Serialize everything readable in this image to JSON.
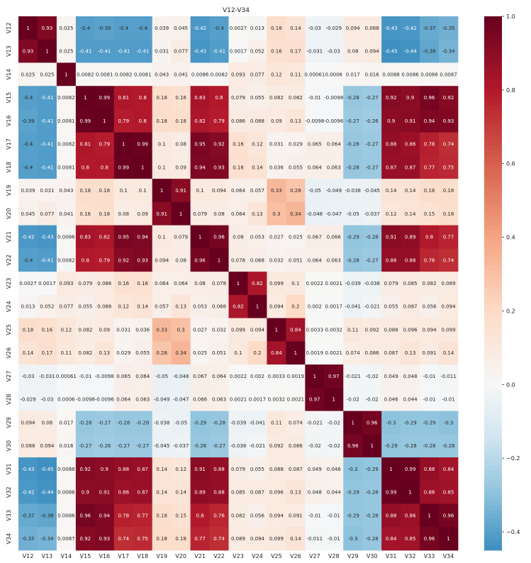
{
  "chart_data": {
    "type": "heatmap",
    "title": "V12-V34",
    "labels": [
      "V12",
      "V13",
      "V14",
      "V15",
      "V16",
      "V17",
      "V18",
      "V19",
      "V20",
      "V21",
      "V22",
      "V23",
      "V24",
      "V25",
      "V26",
      "V27",
      "V28",
      "V29",
      "V30",
      "V31",
      "V32",
      "V33",
      "V34"
    ],
    "matrix": [
      [
        1,
        0.93,
        0.025,
        -0.4,
        -0.39,
        -0.4,
        -0.4,
        0.039,
        0.045,
        -0.42,
        -0.4,
        0.0027,
        0.013,
        0.18,
        0.14,
        -0.03,
        -0.029,
        0.094,
        0.088,
        -0.43,
        -0.42,
        -0.37,
        -0.35
      ],
      [
        0.93,
        1,
        0.025,
        -0.41,
        -0.41,
        -0.41,
        -0.41,
        0.031,
        0.077,
        -0.43,
        -0.41,
        0.0017,
        0.052,
        0.16,
        0.17,
        -0.031,
        -0.03,
        0.08,
        0.094,
        -0.45,
        -0.44,
        -0.38,
        -0.34
      ],
      [
        0.025,
        0.025,
        1,
        0.0082,
        0.0081,
        0.0082,
        0.0081,
        0.043,
        0.041,
        0.0086,
        0.0082,
        0.093,
        0.077,
        0.12,
        0.11,
        0.00061,
        0.0006,
        0.017,
        0.016,
        0.0088,
        0.0086,
        0.0086,
        0.0087
      ],
      [
        -0.4,
        -0.41,
        0.0082,
        1,
        0.99,
        0.81,
        0.8,
        0.18,
        0.16,
        0.83,
        0.8,
        0.079,
        0.055,
        0.082,
        0.082,
        -0.01,
        -0.0098,
        -0.28,
        -0.27,
        0.92,
        0.9,
        0.96,
        0.92
      ],
      [
        -0.39,
        -0.41,
        0.0081,
        0.99,
        1,
        0.79,
        0.8,
        0.18,
        0.18,
        0.82,
        0.79,
        0.086,
        0.088,
        0.09,
        0.13,
        -0.0098,
        -0.0096,
        -0.27,
        -0.26,
        0.9,
        0.91,
        0.94,
        0.93
      ],
      [
        -0.4,
        -0.41,
        0.0082,
        0.81,
        0.79,
        1,
        0.99,
        0.1,
        0.08,
        0.95,
        0.92,
        0.16,
        0.12,
        0.031,
        0.029,
        0.065,
        0.064,
        -0.28,
        -0.27,
        0.88,
        0.86,
        0.78,
        0.74
      ],
      [
        -0.4,
        -0.41,
        0.0081,
        0.8,
        0.8,
        0.99,
        1,
        0.1,
        0.09,
        0.94,
        0.93,
        0.16,
        0.14,
        0.036,
        0.055,
        0.064,
        0.063,
        -0.28,
        -0.27,
        0.87,
        0.87,
        0.77,
        0.75
      ],
      [
        0.039,
        0.031,
        0.043,
        0.18,
        0.18,
        0.1,
        0.1,
        1,
        0.91,
        0.1,
        0.094,
        0.064,
        0.057,
        0.33,
        0.28,
        -0.05,
        -0.049,
        -0.038,
        -0.045,
        0.14,
        0.14,
        0.18,
        0.18
      ],
      [
        0.045,
        0.077,
        0.041,
        0.16,
        0.18,
        0.08,
        0.09,
        0.91,
        1,
        0.079,
        0.08,
        0.064,
        0.13,
        0.3,
        0.34,
        -0.048,
        -0.047,
        -0.05,
        -0.037,
        0.12,
        0.14,
        0.15,
        0.18
      ],
      [
        -0.42,
        -0.43,
        0.0086,
        0.83,
        0.82,
        0.95,
        0.94,
        0.1,
        0.079,
        1,
        0.96,
        0.08,
        0.053,
        0.027,
        0.025,
        0.067,
        0.066,
        -0.29,
        -0.28,
        0.91,
        0.89,
        0.8,
        0.77
      ],
      [
        -0.4,
        -0.41,
        0.0082,
        0.8,
        0.79,
        0.92,
        0.93,
        0.094,
        0.08,
        0.96,
        1,
        0.078,
        0.068,
        0.032,
        0.051,
        0.064,
        0.063,
        -0.28,
        -0.27,
        0.88,
        0.88,
        0.76,
        0.74
      ],
      [
        0.0027,
        0.0017,
        0.093,
        0.079,
        0.086,
        0.16,
        0.16,
        0.064,
        0.064,
        0.08,
        0.078,
        1,
        0.82,
        0.099,
        0.1,
        0.0022,
        0.0021,
        -0.039,
        -0.038,
        0.079,
        0.085,
        0.082,
        0.089
      ],
      [
        0.013,
        0.052,
        0.077,
        0.055,
        0.088,
        0.12,
        0.14,
        0.057,
        0.13,
        0.053,
        0.068,
        0.82,
        1,
        0.094,
        0.2,
        0.002,
        0.0017,
        -0.041,
        -0.021,
        0.055,
        0.087,
        0.056,
        0.094
      ],
      [
        0.18,
        0.16,
        0.12,
        0.082,
        0.09,
        0.031,
        0.036,
        0.33,
        0.3,
        0.027,
        0.032,
        0.099,
        0.094,
        1,
        0.84,
        0.0033,
        0.0032,
        0.11,
        0.092,
        0.088,
        0.096,
        0.094,
        0.099
      ],
      [
        0.14,
        0.17,
        0.11,
        0.082,
        0.13,
        0.029,
        0.055,
        0.28,
        0.34,
        0.025,
        0.051,
        0.1,
        0.2,
        0.84,
        1,
        0.0019,
        0.0021,
        0.074,
        0.086,
        0.087,
        0.13,
        0.091,
        0.14
      ],
      [
        -0.03,
        -0.031,
        0.00061,
        -0.01,
        -0.0098,
        0.065,
        0.064,
        -0.05,
        -0.048,
        0.067,
        0.064,
        0.0022,
        0.002,
        0.0033,
        0.0019,
        1,
        0.97,
        -0.021,
        -0.02,
        0.049,
        0.048,
        -0.01,
        -0.011
      ],
      [
        -0.029,
        -0.03,
        0.0006,
        -0.0098,
        -0.0096,
        0.064,
        0.063,
        -0.049,
        -0.047,
        0.066,
        0.063,
        0.0021,
        0.0017,
        0.0032,
        0.0021,
        0.97,
        1,
        -0.02,
        -0.02,
        0.046,
        0.044,
        -0.01,
        -0.01
      ],
      [
        0.094,
        0.08,
        0.017,
        -0.28,
        -0.27,
        -0.28,
        -0.28,
        -0.038,
        -0.05,
        -0.29,
        -0.28,
        -0.039,
        -0.041,
        0.11,
        0.074,
        -0.021,
        -0.02,
        1,
        0.96,
        -0.3,
        -0.29,
        -0.29,
        -0.3
      ],
      [
        0.088,
        0.094,
        0.016,
        -0.27,
        -0.26,
        -0.27,
        -0.27,
        -0.045,
        -0.037,
        -0.28,
        -0.27,
        -0.038,
        -0.021,
        0.092,
        0.086,
        -0.02,
        -0.02,
        0.96,
        1,
        -0.29,
        -0.28,
        -0.28,
        -0.28
      ],
      [
        -0.43,
        -0.45,
        0.0088,
        0.92,
        0.9,
        0.88,
        0.87,
        0.14,
        0.12,
        0.91,
        0.88,
        0.079,
        0.055,
        0.088,
        0.087,
        0.049,
        0.046,
        -0.3,
        -0.29,
        1,
        0.99,
        0.88,
        0.84
      ],
      [
        -0.42,
        -0.44,
        0.0086,
        0.9,
        0.91,
        0.86,
        0.87,
        0.14,
        0.14,
        0.89,
        0.88,
        0.085,
        0.087,
        0.096,
        0.13,
        0.048,
        0.044,
        -0.29,
        -0.28,
        0.99,
        1,
        0.86,
        0.85
      ],
      [
        -0.37,
        -0.38,
        0.0086,
        0.96,
        0.94,
        0.78,
        0.77,
        0.18,
        0.15,
        0.8,
        0.76,
        0.082,
        0.056,
        0.094,
        0.091,
        -0.01,
        -0.01,
        -0.29,
        -0.28,
        0.88,
        0.86,
        1,
        0.96
      ],
      [
        -0.35,
        -0.34,
        0.0087,
        0.92,
        0.93,
        0.74,
        0.75,
        0.18,
        0.18,
        0.77,
        0.74,
        0.089,
        0.094,
        0.099,
        0.14,
        -0.011,
        -0.01,
        -0.3,
        -0.28,
        0.84,
        0.85,
        0.96,
        1
      ]
    ],
    "colorbar": {
      "min": -0.45,
      "max": 1.0,
      "ticks": [
        -0.4,
        -0.2,
        0.0,
        0.2,
        0.4,
        0.6,
        0.8,
        1.0
      ],
      "tick_labels": [
        "−0.4",
        "−0.2",
        "0.0",
        "0.2",
        "0.4",
        "0.6",
        "0.8",
        "1.0"
      ],
      "colormap": "RdBu_r (diverging blue → white → red)",
      "colors": {
        "low": "#6fb0d5",
        "mid": "#f7f7f7",
        "high": "#67001f"
      }
    },
    "annotations": "cell values printed in each cell",
    "grid": false
  }
}
